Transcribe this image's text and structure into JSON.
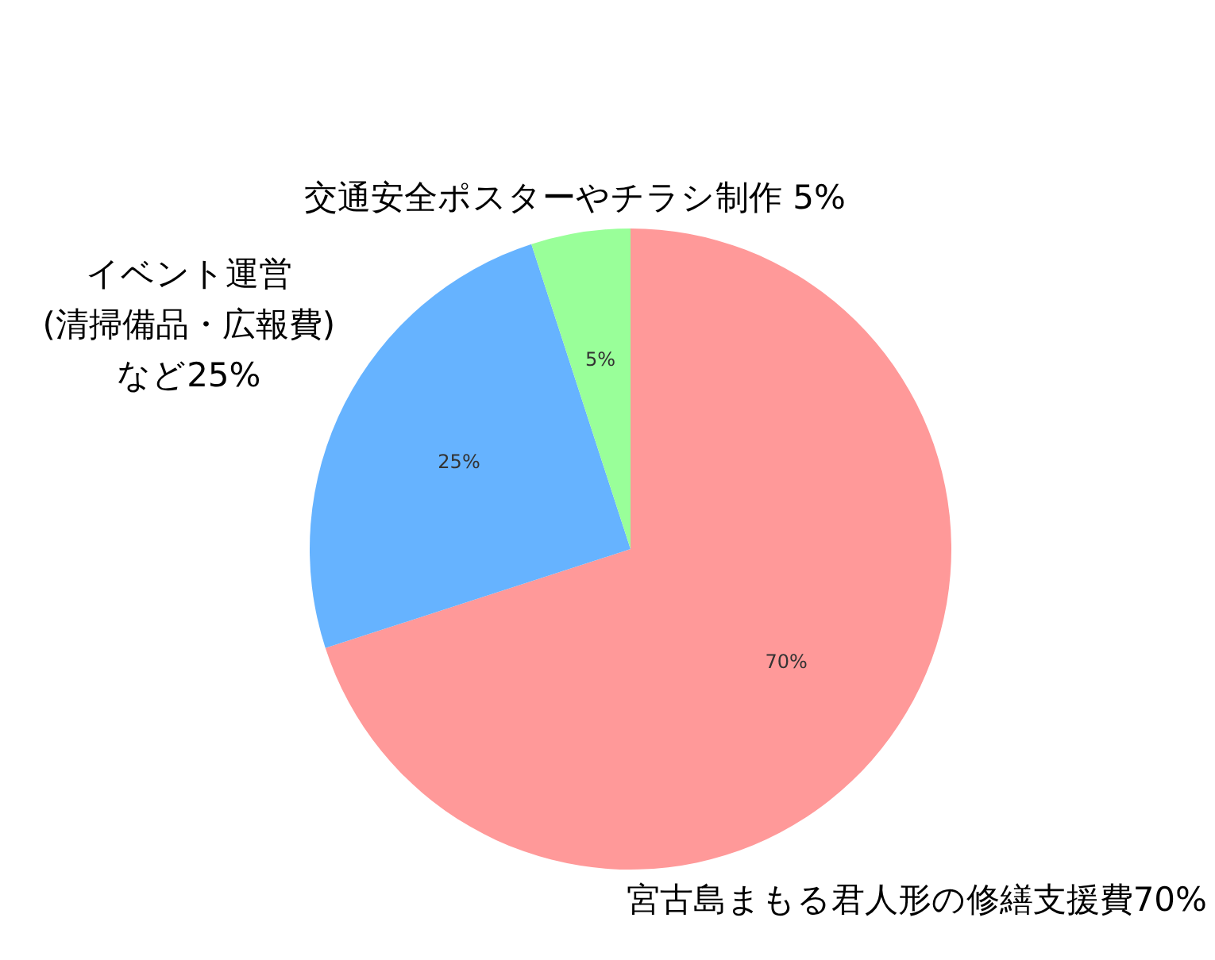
{
  "chart_data": {
    "type": "pie",
    "categories": [
      "宮古島まもる君人形の修繕支援費70%",
      "イベント運営\n(清掃備品・広報費)\nなど25%",
      "交通安全ポスターやチラシ制作 5%"
    ],
    "values": [
      70,
      25,
      5
    ],
    "colors": [
      "#ff9999",
      "#66b3ff",
      "#99ff99"
    ],
    "value_labels": [
      "70%",
      "25%",
      "5%"
    ]
  }
}
